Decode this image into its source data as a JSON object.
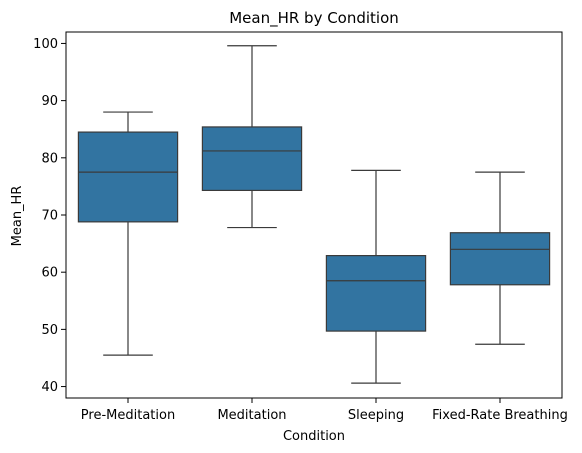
{
  "chart_data": {
    "type": "box",
    "title": "Mean_HR by Condition",
    "xlabel": "Condition",
    "ylabel": "Mean_HR",
    "ylim": [
      38,
      102
    ],
    "yticks": [
      40,
      50,
      60,
      70,
      80,
      90,
      100
    ],
    "box_color": "#3274a1",
    "line_color": "#3a3a3a",
    "categories": [
      "Pre-Meditation",
      "Meditation",
      "Sleeping",
      "Fixed-Rate Breathing"
    ],
    "boxes": [
      {
        "category": "Pre-Meditation",
        "whisker_low": 45.5,
        "q1": 68.8,
        "median": 77.5,
        "q3": 84.5,
        "whisker_high": 88.0
      },
      {
        "category": "Meditation",
        "whisker_low": 67.8,
        "q1": 74.3,
        "median": 81.2,
        "q3": 85.4,
        "whisker_high": 99.6
      },
      {
        "category": "Sleeping",
        "whisker_low": 40.6,
        "q1": 49.7,
        "median": 58.5,
        "q3": 62.9,
        "whisker_high": 77.8
      },
      {
        "category": "Fixed-Rate Breathing",
        "whisker_low": 47.4,
        "q1": 57.8,
        "median": 64.0,
        "q3": 66.9,
        "whisker_high": 77.5
      }
    ]
  }
}
